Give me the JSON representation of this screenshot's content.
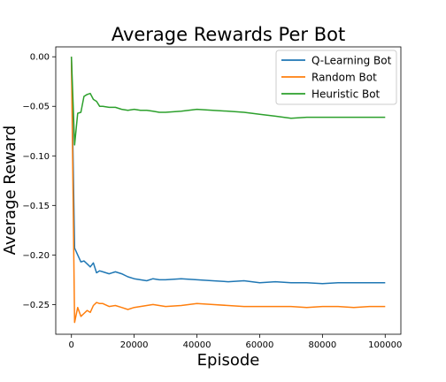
{
  "chart_data": {
    "type": "line",
    "title": "Average Rewards Per Bot",
    "xlabel": "Episode",
    "ylabel": "Average Reward",
    "xlim": [
      -5000,
      105000
    ],
    "ylim": [
      -0.28,
      0.01
    ],
    "xticks": [
      0,
      20000,
      40000,
      60000,
      80000,
      100000
    ],
    "yticks": [
      0.0,
      -0.05,
      -0.1,
      -0.15,
      -0.2,
      -0.25
    ],
    "xtick_labels": [
      "0",
      "20000",
      "40000",
      "60000",
      "80000",
      "100000"
    ],
    "ytick_labels": [
      "0.00",
      "−0.05",
      "−0.10",
      "−0.15",
      "−0.20",
      "−0.25"
    ],
    "grid": false,
    "legend_position": "top-right",
    "series": [
      {
        "name": "Q-Learning Bot",
        "color": "#1f77b4",
        "x": [
          0,
          1000,
          2000,
          3000,
          4000,
          5000,
          6000,
          7000,
          8000,
          9000,
          10000,
          12000,
          14000,
          16000,
          18000,
          20000,
          22000,
          24000,
          26000,
          28000,
          30000,
          35000,
          40000,
          45000,
          50000,
          55000,
          60000,
          65000,
          70000,
          75000,
          80000,
          85000,
          90000,
          95000,
          100000
        ],
        "y": [
          0.0,
          -0.193,
          -0.2,
          -0.207,
          -0.206,
          -0.209,
          -0.212,
          -0.208,
          -0.218,
          -0.216,
          -0.217,
          -0.219,
          -0.217,
          -0.219,
          -0.222,
          -0.224,
          -0.225,
          -0.226,
          -0.224,
          -0.225,
          -0.225,
          -0.224,
          -0.225,
          -0.226,
          -0.227,
          -0.226,
          -0.228,
          -0.227,
          -0.228,
          -0.228,
          -0.229,
          -0.228,
          -0.228,
          -0.228,
          -0.228
        ]
      },
      {
        "name": "Random Bot",
        "color": "#ff7f0e",
        "x": [
          0,
          1000,
          2000,
          3000,
          4000,
          5000,
          6000,
          7000,
          8000,
          9000,
          10000,
          12000,
          14000,
          16000,
          18000,
          20000,
          22000,
          24000,
          26000,
          28000,
          30000,
          35000,
          40000,
          45000,
          50000,
          55000,
          60000,
          65000,
          70000,
          75000,
          80000,
          85000,
          90000,
          95000,
          100000
        ],
        "y": [
          0.0,
          -0.268,
          -0.253,
          -0.262,
          -0.259,
          -0.256,
          -0.258,
          -0.251,
          -0.248,
          -0.249,
          -0.249,
          -0.252,
          -0.251,
          -0.253,
          -0.255,
          -0.253,
          -0.252,
          -0.251,
          -0.25,
          -0.251,
          -0.252,
          -0.251,
          -0.249,
          -0.25,
          -0.251,
          -0.252,
          -0.252,
          -0.252,
          -0.252,
          -0.253,
          -0.252,
          -0.252,
          -0.253,
          -0.252,
          -0.252
        ]
      },
      {
        "name": "Heuristic Bot",
        "color": "#2ca02c",
        "x": [
          0,
          1000,
          2000,
          3000,
          4000,
          5000,
          6000,
          7000,
          8000,
          9000,
          10000,
          12000,
          14000,
          16000,
          18000,
          20000,
          22000,
          24000,
          26000,
          28000,
          30000,
          35000,
          40000,
          45000,
          50000,
          55000,
          60000,
          65000,
          70000,
          75000,
          80000,
          85000,
          90000,
          95000,
          100000
        ],
        "y": [
          0.0,
          -0.089,
          -0.057,
          -0.056,
          -0.04,
          -0.038,
          -0.037,
          -0.043,
          -0.045,
          -0.05,
          -0.05,
          -0.051,
          -0.051,
          -0.053,
          -0.054,
          -0.053,
          -0.054,
          -0.054,
          -0.055,
          -0.056,
          -0.056,
          -0.055,
          -0.053,
          -0.054,
          -0.055,
          -0.056,
          -0.058,
          -0.06,
          -0.062,
          -0.061,
          -0.061,
          -0.061,
          -0.061,
          -0.061,
          -0.061
        ]
      }
    ]
  }
}
